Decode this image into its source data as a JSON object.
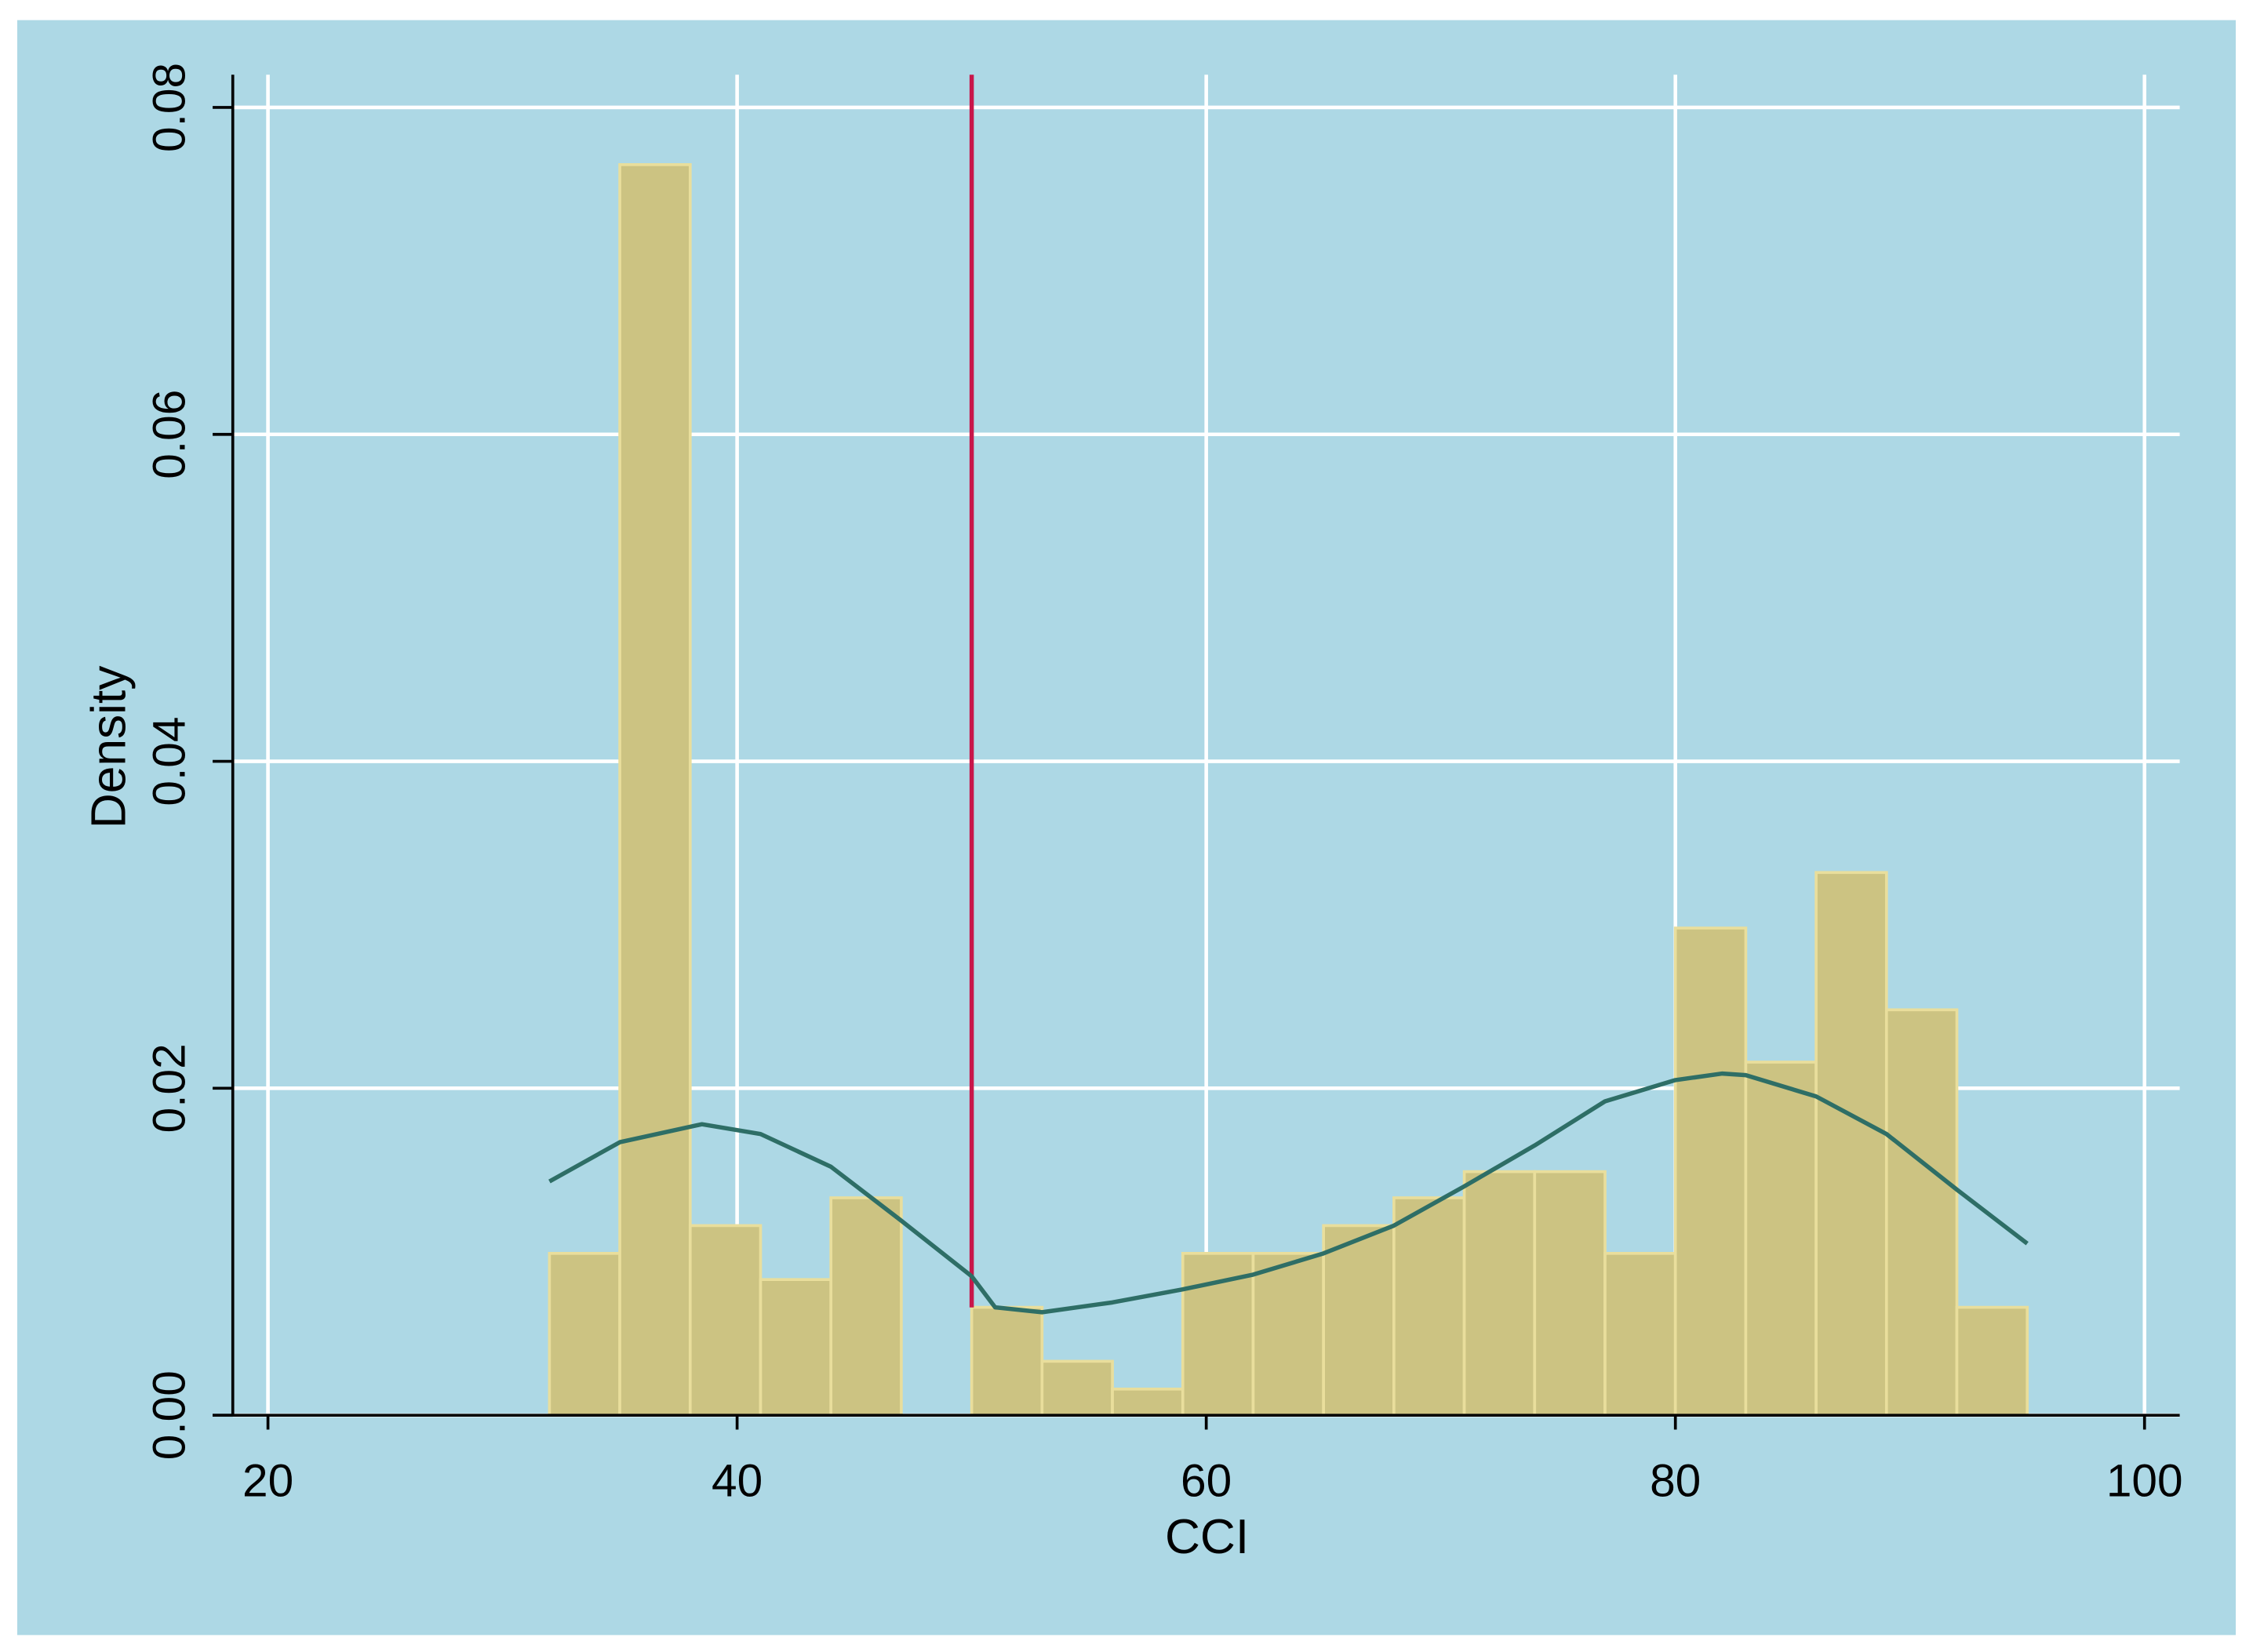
{
  "chart_data": {
    "type": "histogram",
    "x_label": "CCI",
    "y_label": "Density",
    "bins": [
      32,
      35,
      38,
      41,
      44,
      47,
      50,
      53,
      56,
      59,
      62,
      65,
      68,
      71,
      74,
      77,
      80,
      83,
      86,
      89,
      92,
      95
    ],
    "values": [
      0.0099,
      0.0765,
      0.0116,
      0.0083,
      0.0133,
      0,
      0.0066,
      0.0033,
      0.0016,
      0.0099,
      0.0099,
      0.0116,
      0.0133,
      0.0149,
      0.0149,
      0.0099,
      0.0298,
      0.0216,
      0.0332,
      0.0248,
      0.0066
    ],
    "color": "#ccc382",
    "kde": {
      "x": [
        32,
        35,
        38.5,
        41,
        44,
        47,
        50,
        51,
        53,
        56,
        59,
        62,
        65,
        68,
        71,
        74,
        77,
        80,
        82,
        83,
        86,
        89,
        92,
        95
      ],
      "values": [
        0.0143,
        0.0167,
        0.0178,
        0.0172,
        0.0152,
        0.0119,
        0.0085,
        0.0066,
        0.0063,
        0.0069,
        0.0077,
        0.0086,
        0.0099,
        0.0116,
        0.014,
        0.0165,
        0.0192,
        0.0205,
        0.0209,
        0.0208,
        0.0195,
        0.0172,
        0.0138,
        0.0105
      ],
      "color": "#2e6e66"
    },
    "vline": {
      "x": 50,
      "color": "#c8174a"
    },
    "xlim": [
      18.5,
      101.5
    ],
    "ylim": [
      0,
      0.082
    ],
    "xticks": [
      20,
      40,
      60,
      80,
      100
    ],
    "yticks": [
      {
        "value": 0,
        "label": "0.00"
      },
      0.02,
      0.04,
      0.06,
      0.08
    ],
    "grid": true
  }
}
